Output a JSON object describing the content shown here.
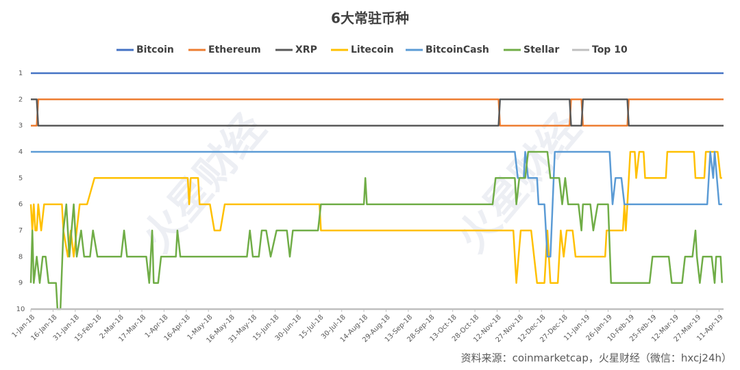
{
  "chart_data": {
    "type": "line",
    "title": "6大常驻币种",
    "source": "资料来源：coinmarketcap，火星财经（微信：hxcj24h）",
    "watermark": "火星财经",
    "xlim": [
      "1-Jan-18",
      "14-Apr-19"
    ],
    "xticks": [
      "1-Jan-18",
      "16-Jan-18",
      "31-Jan-18",
      "15-Feb-18",
      "2-Mar-18",
      "17-Mar-18",
      "1-Apr-18",
      "16-Apr-18",
      "1-May-18",
      "16-May-18",
      "31-May-18",
      "15-Jun-18",
      "30-Jun-18",
      "15-Jul-18",
      "30-Jul-18",
      "14-Aug-18",
      "29-Aug-18",
      "13-Sep-18",
      "28-Sep-18",
      "13-Oct-18",
      "28-Oct-18",
      "12-Nov-18",
      "27-Nov-18",
      "12-Dec-18",
      "27-Dec-18",
      "11-Jan-19",
      "26-Jan-19",
      "10-Feb-19",
      "25-Feb-19",
      "12-Mar-19",
      "27-Mar-19",
      "11-Apr-19"
    ],
    "ylim": [
      1,
      10
    ],
    "yticks": [
      1,
      2,
      3,
      4,
      5,
      6,
      7,
      8,
      9,
      10
    ],
    "y_inverted": true,
    "grid": false,
    "legend": "top",
    "series": [
      {
        "name": "Bitcoin",
        "color": "#4472c4",
        "x": [
          "1-Jan-18",
          "14-Apr-19"
        ],
        "values": [
          1,
          1
        ]
      },
      {
        "name": "Ethereum",
        "color": "#ed7d31",
        "x": [
          "1-Jan-18",
          "5-Jan-18",
          "6-Jan-18",
          "13-Nov-18",
          "14-Nov-18",
          "31-Dec-18",
          "1-Jan-19",
          "8-Jan-19",
          "9-Jan-19",
          "8-Feb-19",
          "9-Feb-19",
          "14-Apr-19"
        ],
        "values": [
          3,
          3,
          2,
          2,
          3,
          3,
          2,
          2,
          3,
          3,
          2,
          2
        ]
      },
      {
        "name": "XRP",
        "color": "#595959",
        "x": [
          "1-Jan-18",
          "5-Jan-18",
          "6-Jan-18",
          "13-Nov-18",
          "14-Nov-18",
          "31-Dec-18",
          "1-Jan-19",
          "8-Jan-19",
          "9-Jan-19",
          "8-Feb-19",
          "9-Feb-19",
          "14-Apr-19"
        ],
        "values": [
          2,
          2,
          3,
          3,
          2,
          2,
          3,
          3,
          2,
          2,
          3,
          3
        ]
      },
      {
        "name": "Litecoin",
        "color": "#ffc000",
        "x": [
          "1-Jan-18",
          "2-Jan-18",
          "3-Jan-18",
          "4-Jan-18",
          "5-Jan-18",
          "6-Jan-18",
          "8-Jan-18",
          "10-Jan-18",
          "22-Jan-18",
          "23-Jan-18",
          "26-Jan-18",
          "28-Jan-18",
          "30-Jan-18",
          "3-Feb-18",
          "8-Feb-18",
          "13-Feb-18",
          "17-Apr-18",
          "18-Apr-18",
          "19-Apr-18",
          "24-Apr-18",
          "25-Apr-18",
          "2-May-18",
          "5-May-18",
          "9-May-18",
          "12-May-18",
          "15-Jul-18",
          "16-Jul-18",
          "23-Nov-18",
          "25-Nov-18",
          "28-Nov-18",
          "5-Dec-18",
          "9-Dec-18",
          "14-Dec-18",
          "16-Dec-18",
          "18-Dec-18",
          "23-Dec-18",
          "25-Dec-18",
          "27-Dec-18",
          "29-Dec-18",
          "2-Jan-19",
          "4-Jan-19",
          "24-Jan-19",
          "25-Jan-19",
          "5-Feb-19",
          "6-Feb-19",
          "7-Feb-19",
          "8-Feb-19",
          "10-Feb-19",
          "13-Feb-19",
          "14-Feb-19",
          "16-Feb-19",
          "19-Feb-19",
          "20-Feb-19",
          "6-Mar-19",
          "7-Mar-19",
          "25-Mar-19",
          "26-Mar-19",
          "1-Apr-19",
          "2-Apr-19",
          "10-Apr-19",
          "12-Apr-19",
          "13-Apr-19"
        ],
        "values": [
          6,
          7,
          6,
          7,
          7,
          6,
          7,
          6,
          6,
          7,
          8,
          7,
          8,
          6,
          6,
          5,
          5,
          6,
          5,
          5,
          6,
          6,
          7,
          7,
          6,
          6,
          7,
          7,
          9,
          7,
          7,
          9,
          9,
          7,
          9,
          9,
          7,
          8,
          7,
          7,
          8,
          8,
          7,
          7,
          6,
          7,
          6,
          4,
          4,
          5,
          4,
          4,
          5,
          5,
          4,
          4,
          5,
          5,
          4,
          4,
          5,
          5
        ]
      },
      {
        "name": "BitcoinCash",
        "color": "#5b9bd5",
        "x": [
          "1-Jan-18",
          "24-Nov-18",
          "26-Nov-18",
          "30-Nov-18",
          "1-Dec-18",
          "3-Dec-18",
          "9-Dec-18",
          "10-Dec-18",
          "14-Dec-18",
          "16-Dec-18",
          "18-Dec-18",
          "21-Dec-18",
          "27-Jan-19",
          "29-Jan-19",
          "31-Jan-19",
          "4-Feb-19",
          "6-Feb-19",
          "3-Apr-19",
          "5-Apr-19",
          "7-Apr-19",
          "8-Apr-19",
          "11-Apr-19",
          "13-Apr-19"
        ],
        "values": [
          4,
          4,
          5,
          5,
          4,
          5,
          5,
          6,
          6,
          8,
          8,
          4,
          4,
          6,
          5,
          5,
          6,
          6,
          4,
          5,
          4,
          6,
          6
        ]
      },
      {
        "name": "Stellar",
        "color": "#70ad47",
        "x": [
          "1-Jan-18",
          "2-Jan-18",
          "3-Jan-18",
          "5-Jan-18",
          "7-Jan-18",
          "9-Jan-18",
          "11-Jan-18",
          "13-Jan-18",
          "18-Jan-18",
          "19-Jan-18",
          "21-Jan-18",
          "23-Jan-18",
          "25-Jan-18",
          "27-Jan-18",
          "30-Jan-18",
          "1-Feb-18",
          "4-Feb-18",
          "6-Feb-18",
          "10-Feb-18",
          "12-Feb-18",
          "15-Feb-18",
          "3-Mar-18",
          "5-Mar-18",
          "7-Mar-18",
          "20-Mar-18",
          "22-Mar-18",
          "24-Mar-18",
          "25-Mar-18",
          "28-Mar-18",
          "30-Mar-18",
          "9-Apr-18",
          "10-Apr-18",
          "12-Apr-18",
          "27-May-18",
          "29-May-18",
          "31-May-18",
          "4-Jun-18",
          "6-Jun-18",
          "9-Jun-18",
          "12-Jun-18",
          "16-Jun-18",
          "23-Jun-18",
          "25-Jun-18",
          "27-Jun-18",
          "14-Jul-18",
          "16-Jul-18",
          "14-Aug-18",
          "15-Aug-18",
          "16-Aug-18",
          "9-Nov-18",
          "11-Nov-18",
          "24-Nov-18",
          "25-Nov-18",
          "27-Nov-18",
          "1-Dec-18",
          "3-Dec-18",
          "16-Dec-18",
          "18-Dec-18",
          "24-Dec-18",
          "26-Dec-18",
          "28-Dec-18",
          "30-Dec-18",
          "6-Jan-19",
          "8-Jan-19",
          "9-Jan-19",
          "14-Jan-19",
          "16-Jan-19",
          "19-Jan-19",
          "26-Jan-19",
          "28-Jan-19",
          "23-Feb-19",
          "25-Feb-19",
          "8-Mar-19",
          "10-Mar-19",
          "17-Mar-19",
          "19-Mar-19",
          "24-Mar-19",
          "26-Mar-19",
          "27-Mar-19",
          "29-Mar-19",
          "31-Mar-19",
          "6-Apr-19",
          "8-Apr-19",
          "9-Apr-19",
          "12-Apr-19",
          "13-Apr-19"
        ],
        "values": [
          9,
          7,
          9,
          8,
          9,
          8,
          8,
          9,
          9,
          10,
          10,
          7,
          6,
          8,
          6,
          8,
          7,
          8,
          8,
          7,
          8,
          8,
          7,
          8,
          8,
          9,
          7,
          9,
          9,
          8,
          8,
          7,
          8,
          8,
          7,
          8,
          8,
          7,
          7,
          8,
          7,
          7,
          8,
          7,
          7,
          6,
          6,
          5,
          6,
          6,
          5,
          5,
          6,
          5,
          5,
          4,
          4,
          5,
          5,
          6,
          5,
          6,
          6,
          7,
          6,
          6,
          7,
          6,
          6,
          9,
          9,
          8,
          8,
          9,
          9,
          8,
          8,
          7,
          8,
          9,
          8,
          8,
          9,
          8,
          8,
          9
        ]
      },
      {
        "name": "Top 10",
        "color": "#bfbfbf",
        "x": [
          "1-Jan-18",
          "14-Apr-19"
        ],
        "values": [
          10,
          10
        ]
      }
    ]
  }
}
